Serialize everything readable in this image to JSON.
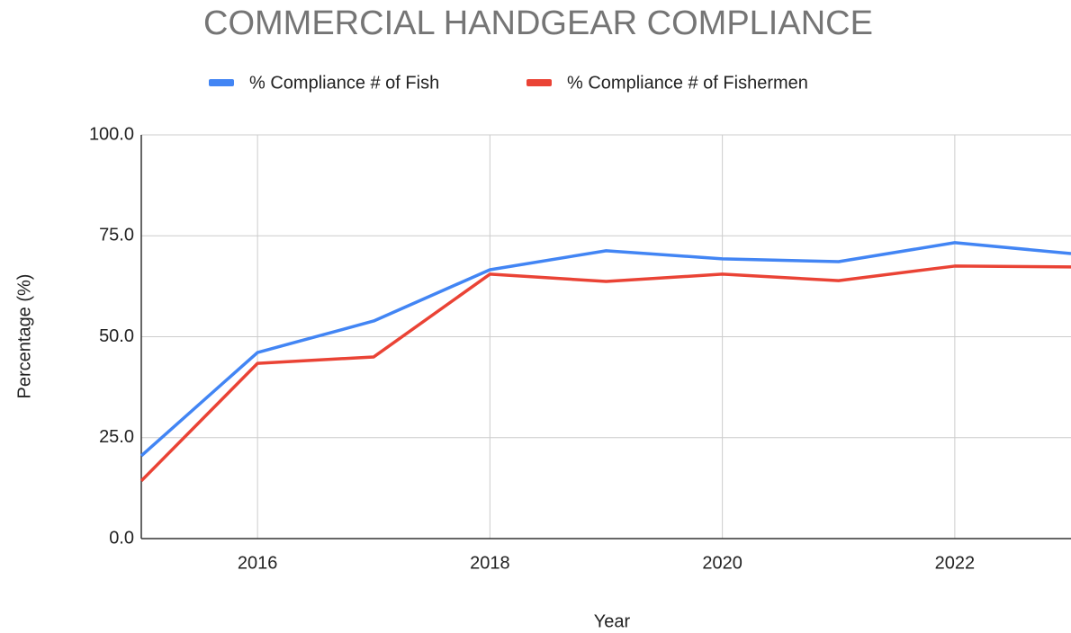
{
  "chart_data": {
    "type": "line",
    "title": "COMMERCIAL HANDGEAR COMPLIANCE",
    "x_label": "Year",
    "y_label": "Percentage (%)",
    "x": [
      2015,
      2016,
      2017,
      2018,
      2019,
      2020,
      2021,
      2022,
      2023
    ],
    "series": [
      {
        "name": "% Compliance # of Fish",
        "color": "#4285f4",
        "values": [
          20.5,
          46.1,
          53.9,
          66.6,
          71.3,
          69.3,
          68.6,
          73.3,
          70.6
        ]
      },
      {
        "name": "% Compliance # of Fishermen",
        "color": "#ea4335",
        "values": [
          14.3,
          43.4,
          45.0,
          65.5,
          63.7,
          65.5,
          63.9,
          67.5,
          67.3
        ]
      }
    ],
    "xlim": [
      2015,
      2023
    ],
    "xticks": [
      2016,
      2018,
      2020,
      2022
    ],
    "ylim": [
      0,
      100
    ],
    "yticks": [
      {
        "value": 0,
        "label": "0.0"
      },
      {
        "value": 25,
        "label": "25.0"
      },
      {
        "value": 50,
        "label": "50.0"
      },
      {
        "value": 75,
        "label": "75.0"
      },
      {
        "value": 100,
        "label": "100.0"
      }
    ],
    "grid": true,
    "legend": "top"
  }
}
